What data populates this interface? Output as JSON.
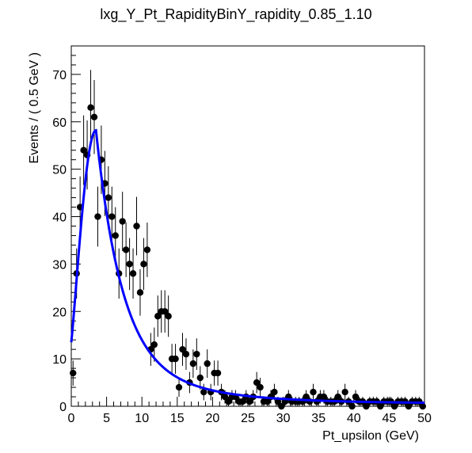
{
  "chart_data": {
    "type": "scatter",
    "title": "lxg_Y_Pt_RapidityBinY_rapidity_0.85_1.10",
    "xlabel": "Pt_upsilon (GeV)",
    "ylabel": "Events / ( 0.5 GeV )",
    "xlim": [
      0,
      50
    ],
    "ylim": [
      0,
      76
    ],
    "x_ticks": [
      0,
      5,
      10,
      15,
      20,
      25,
      30,
      35,
      40,
      45,
      50
    ],
    "y_ticks": [
      0,
      10,
      20,
      30,
      40,
      50,
      60,
      70
    ],
    "grid": false,
    "legend": "none",
    "colors": {
      "data": "#000000",
      "fit": "#0000ff"
    },
    "series": [
      {
        "kind": "points_with_error_bars",
        "x": [
          0.25,
          0.75,
          1.25,
          1.75,
          2.25,
          2.75,
          3.25,
          3.75,
          4.25,
          4.75,
          5.25,
          5.75,
          6.25,
          6.75,
          7.25,
          7.75,
          8.25,
          8.75,
          9.25,
          9.75,
          10.25,
          10.75,
          11.25,
          11.75,
          12.25,
          12.75,
          13.25,
          13.75,
          14.25,
          14.75,
          15.25,
          15.75,
          16.25,
          16.75,
          17.25,
          17.75,
          18.25,
          18.75,
          19.25,
          19.75,
          20.25,
          20.75,
          21.25,
          21.75,
          22.25,
          22.75,
          23.25,
          23.75,
          24.25,
          24.75,
          25.25,
          25.75,
          26.25,
          26.75,
          27.25,
          27.75,
          28.25,
          28.75,
          29.25,
          29.75,
          30.25,
          30.75,
          31.25,
          31.75,
          32.25,
          32.75,
          33.25,
          33.75,
          34.25,
          34.75,
          35.25,
          35.75,
          36.25,
          36.75,
          37.25,
          37.75,
          38.25,
          38.75,
          39.25,
          39.75,
          40.25,
          40.75,
          41.25,
          41.75,
          42.25,
          42.75,
          43.25,
          43.75,
          44.25,
          44.75,
          45.25,
          45.75,
          46.25,
          46.75,
          47.25,
          47.75,
          48.25,
          48.75,
          49.25,
          49.75
        ],
        "y": [
          7,
          28,
          42,
          54,
          53,
          63,
          61,
          40,
          52,
          47,
          44,
          40,
          36,
          28,
          39,
          33,
          30,
          28,
          38,
          24,
          30,
          33,
          12,
          13,
          19,
          20,
          20,
          19,
          10,
          10,
          4,
          12,
          11,
          5,
          9,
          11,
          6,
          3,
          9,
          3,
          7,
          7,
          3,
          2,
          1,
          2,
          2,
          1,
          1,
          2,
          1,
          2,
          5,
          4,
          1,
          1,
          2,
          3,
          1,
          0,
          1,
          2,
          1,
          1,
          1,
          1,
          2,
          1,
          3,
          1,
          2,
          2,
          1,
          1,
          1,
          2,
          1,
          3,
          1,
          0,
          2,
          1,
          1,
          0,
          1,
          1,
          1,
          0,
          1,
          1,
          1,
          0,
          1,
          1,
          1,
          0,
          1,
          1,
          1,
          0
        ]
      },
      {
        "kind": "fit_curve",
        "peak_x": 3.5,
        "peak_y": 58.2,
        "y_at_zero": 13.5
      }
    ]
  }
}
